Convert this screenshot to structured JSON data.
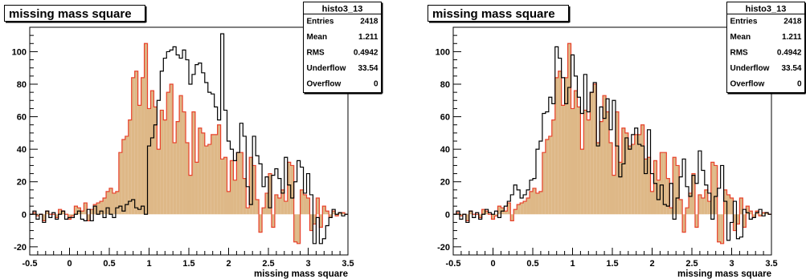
{
  "chart_data": [
    {
      "type": "histogram",
      "title": "missing mass square",
      "xlabel": "missing mass square",
      "ylabel": "",
      "xlim": [
        -0.5,
        3.5
      ],
      "ylim": [
        -25,
        115
      ],
      "x_ticks": [
        "-0.5",
        "0",
        "0.5",
        "1",
        "1.5",
        "2",
        "2.5",
        "3",
        "3.5"
      ],
      "x_tick_values": [
        -0.5,
        0,
        0.5,
        1,
        1.5,
        2,
        2.5,
        3,
        3.5
      ],
      "y_ticks": [
        "-20",
        "0",
        "20",
        "40",
        "60",
        "80",
        "100"
      ],
      "y_tick_values": [
        -20,
        0,
        20,
        40,
        60,
        80,
        100
      ],
      "grid": false,
      "legend_position": "top-right",
      "stats": {
        "name": "histo3_13",
        "rows": [
          {
            "label": "Entries",
            "value": "2418"
          },
          {
            "label": "Mean",
            "value": "1.211"
          },
          {
            "label": "RMS",
            "value": "0.4942"
          },
          {
            "label": "Underflow",
            "value": "33.54"
          },
          {
            "label": "Overflow",
            "value": "0"
          }
        ]
      },
      "bin_edges": {
        "min": -0.5,
        "max": 3.5,
        "count": 100
      },
      "series": [
        {
          "style": "filled",
          "fill_color": "#deb887",
          "line_color": "#e8402a",
          "values": [
            0,
            1,
            -1,
            0,
            -4,
            2,
            0,
            0,
            -2,
            3,
            2,
            0,
            -3,
            -1,
            5,
            4,
            2,
            7,
            -4,
            3,
            6,
            7,
            8,
            10,
            14,
            16,
            13,
            14,
            38,
            46,
            48,
            58,
            84,
            88,
            67,
            84,
            105,
            65,
            76,
            66,
            40,
            64,
            58,
            75,
            80,
            44,
            57,
            73,
            63,
            44,
            24,
            63,
            32,
            53,
            50,
            42,
            43,
            49,
            49,
            55,
            34,
            35,
            14,
            33,
            21,
            38,
            38,
            22,
            4,
            35,
            30,
            9,
            -11,
            4,
            13,
            25,
            -8,
            12,
            10,
            15,
            8,
            32,
            30,
            -17,
            -18,
            15,
            12,
            10,
            -10,
            -6,
            10,
            -8,
            5,
            2,
            -2,
            2,
            -1,
            1,
            1,
            0
          ]
        },
        {
          "style": "outline",
          "line_color": "#000000",
          "values": [
            0,
            2,
            -3,
            0,
            -5,
            2,
            -2,
            1,
            -3,
            0,
            2,
            -3,
            -2,
            -2,
            0,
            2,
            -3,
            -4,
            3,
            -4,
            5,
            0,
            2,
            -2,
            4,
            0,
            -2,
            4,
            5,
            2,
            6,
            8,
            9,
            4,
            3,
            5,
            0,
            42,
            47,
            55,
            70,
            88,
            96,
            100,
            101,
            103,
            98,
            96,
            101,
            95,
            80,
            86,
            92,
            93,
            87,
            81,
            75,
            74,
            66,
            58,
            111,
            64,
            45,
            40,
            33,
            38,
            56,
            48,
            17,
            6,
            48,
            36,
            31,
            17,
            23,
            4,
            24,
            28,
            22,
            13,
            35,
            18,
            10,
            20,
            33,
            29,
            13,
            25,
            12,
            -18,
            -2,
            -18,
            -15,
            -7,
            -2,
            3,
            0,
            1,
            -1,
            0
          ]
        }
      ]
    },
    {
      "type": "histogram",
      "title": "missing mass square",
      "xlabel": "missing mass square",
      "ylabel": "",
      "xlim": [
        -0.5,
        3.5
      ],
      "ylim": [
        -25,
        115
      ],
      "x_ticks": [
        "-0.5",
        "0",
        "0.5",
        "1",
        "1.5",
        "2",
        "2.5",
        "3",
        "3.5"
      ],
      "x_tick_values": [
        -0.5,
        0,
        0.5,
        1,
        1.5,
        2,
        2.5,
        3,
        3.5
      ],
      "y_ticks": [
        "-20",
        "0",
        "20",
        "40",
        "60",
        "80",
        "100"
      ],
      "y_tick_values": [
        -20,
        0,
        20,
        40,
        60,
        80,
        100
      ],
      "grid": false,
      "legend_position": "top-right",
      "stats": {
        "name": "histo3_13",
        "rows": [
          {
            "label": "Entries",
            "value": "2418"
          },
          {
            "label": "Mean",
            "value": "1.211"
          },
          {
            "label": "RMS",
            "value": "0.4942"
          },
          {
            "label": "Underflow",
            "value": "33.54"
          },
          {
            "label": "Overflow",
            "value": "0"
          }
        ]
      },
      "bin_edges": {
        "min": -0.5,
        "max": 3.5,
        "count": 100
      },
      "series": [
        {
          "style": "filled",
          "fill_color": "#deb887",
          "line_color": "#e8402a",
          "values": [
            0,
            1,
            -1,
            0,
            -4,
            2,
            0,
            0,
            -2,
            3,
            2,
            0,
            -3,
            -1,
            5,
            4,
            2,
            7,
            -4,
            3,
            6,
            7,
            8,
            10,
            14,
            16,
            13,
            14,
            38,
            46,
            48,
            58,
            84,
            88,
            67,
            84,
            105,
            65,
            76,
            66,
            40,
            64,
            58,
            75,
            80,
            44,
            57,
            73,
            63,
            44,
            24,
            63,
            32,
            53,
            50,
            42,
            43,
            49,
            49,
            55,
            34,
            35,
            14,
            33,
            21,
            38,
            38,
            22,
            4,
            35,
            30,
            9,
            -11,
            4,
            13,
            25,
            -8,
            12,
            10,
            15,
            8,
            32,
            30,
            -17,
            -18,
            15,
            12,
            10,
            -10,
            -6,
            10,
            -8,
            5,
            2,
            -2,
            2,
            -1,
            1,
            1,
            0
          ]
        },
        {
          "style": "outline",
          "line_color": "#000000",
          "values": [
            0,
            2,
            -3,
            0,
            -5,
            2,
            -2,
            1,
            -3,
            0,
            3,
            1,
            0,
            2,
            -2,
            2,
            5,
            8,
            12,
            18,
            15,
            10,
            12,
            15,
            21,
            22,
            40,
            45,
            62,
            63,
            72,
            68,
            103,
            96,
            84,
            68,
            78,
            98,
            85,
            72,
            62,
            86,
            63,
            75,
            81,
            42,
            66,
            59,
            71,
            52,
            70,
            42,
            23,
            31,
            47,
            40,
            49,
            53,
            43,
            42,
            25,
            52,
            25,
            19,
            9,
            18,
            6,
            5,
            19,
            -3,
            10,
            23,
            34,
            17,
            11,
            24,
            19,
            39,
            27,
            18,
            13,
            -3,
            11,
            16,
            30,
            8,
            -16,
            -5,
            8,
            -15,
            -14,
            3,
            1,
            -3,
            -2,
            1,
            3,
            -1,
            1,
            0
          ]
        }
      ]
    }
  ]
}
